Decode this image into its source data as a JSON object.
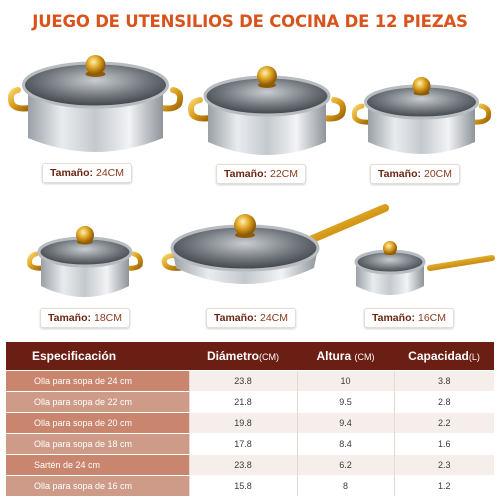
{
  "title": "JUEGO DE UTENSILIOS DE COCINA DE 12 PIEZAS",
  "colors": {
    "accent": "#d9541c",
    "header": "#6b1f14",
    "row_dark": "#c9856d",
    "row_light": "#cf9b89",
    "gold": "#d9a21e",
    "steel": "#c8cdd2"
  },
  "products": [
    {
      "icon": "stockpot-24cm-icon",
      "label_key": "Tamaño:",
      "label_value": "24CM"
    },
    {
      "icon": "stockpot-22cm-icon",
      "label_key": "Tamaño:",
      "label_value": "22CM"
    },
    {
      "icon": "stockpot-20cm-icon",
      "label_key": "Tamaño:",
      "label_value": "20CM"
    },
    {
      "icon": "stockpot-18cm-icon",
      "label_key": "Tamaño:",
      "label_value": "18CM"
    },
    {
      "icon": "frying-pan-24cm-icon",
      "label_key": "Tamaño:",
      "label_value": "24CM"
    },
    {
      "icon": "saucepan-16cm-icon",
      "label_key": "Tamaño:",
      "label_value": "16CM"
    }
  ],
  "table": {
    "headers": [
      "Especificación",
      "Diámetro",
      "Altura",
      "Capacidad"
    ],
    "header_units": [
      "",
      "(CM)",
      "(CM)",
      "(L)"
    ],
    "rows": [
      [
        "Olla para sopa de 24 cm",
        "23.8",
        "10",
        "3.8"
      ],
      [
        "Olla para sopa de 22 cm",
        "21.8",
        "9.5",
        "2.8"
      ],
      [
        "Olla para sopa de 20 cm",
        "19.8",
        "9.4",
        "2.2"
      ],
      [
        "Olla para sopa de 18 cm",
        "17.8",
        "8.4",
        "1.6"
      ],
      [
        "Sartén de 24 cm",
        "23.8",
        "6.2",
        "2.3"
      ],
      [
        "Olla para sopa de 16 cm",
        "15.8",
        "8",
        "1.2"
      ]
    ]
  }
}
